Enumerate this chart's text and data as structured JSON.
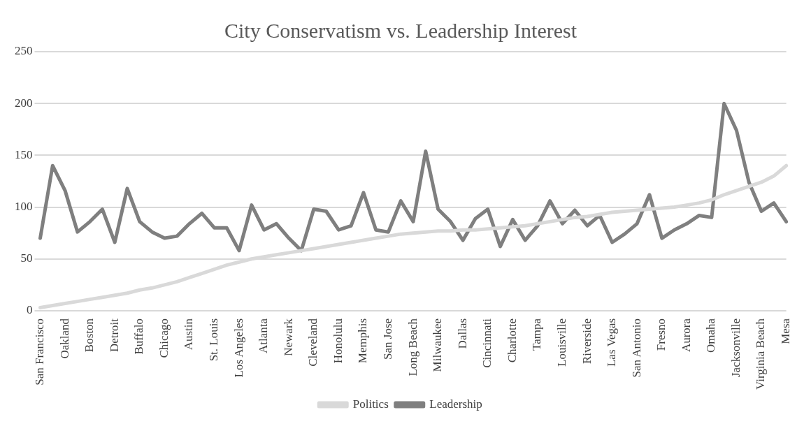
{
  "chart_data": {
    "type": "line",
    "title": "City Conservatism vs. Leadership Interest",
    "categories": [
      "San Francisco",
      null,
      "Oakland",
      null,
      "Boston",
      null,
      "Detroit",
      null,
      "Buffalo",
      null,
      "Chicago",
      null,
      "Austin",
      null,
      "St. Louis",
      null,
      "Los Angeles",
      null,
      "Atlanta",
      null,
      "Newark",
      null,
      "Cleveland",
      null,
      "Honolulu",
      null,
      "Memphis",
      null,
      "San Jose",
      null,
      "Long Beach",
      null,
      "Milwaukee",
      null,
      "Dallas",
      null,
      "Cincinnati",
      null,
      "Charlotte",
      null,
      "Tampa",
      null,
      "Louisville",
      null,
      "Riverside",
      null,
      "Las Vegas",
      null,
      "San Antonio",
      null,
      "Fresno",
      null,
      "Aurora",
      null,
      "Omaha",
      null,
      "Jacksonville",
      null,
      "Virginia Beach",
      null,
      "Mesa"
    ],
    "series": [
      {
        "name": "Politics",
        "color": "#d9d9d9",
        "values": [
          3,
          5,
          7,
          9,
          11,
          13,
          15,
          17,
          20,
          22,
          25,
          28,
          32,
          36,
          40,
          44,
          47,
          50,
          52,
          54,
          56,
          58,
          60,
          62,
          64,
          66,
          68,
          70,
          72,
          74,
          75,
          76,
          77,
          77,
          78,
          78,
          79,
          80,
          81,
          82,
          84,
          86,
          88,
          90,
          91,
          93,
          95,
          96,
          97,
          98,
          99,
          100,
          102,
          104,
          107,
          112,
          116,
          120,
          124,
          130,
          140
        ]
      },
      {
        "name": "Leadership",
        "color": "#7f7f7f",
        "values": [
          70,
          140,
          116,
          76,
          86,
          98,
          66,
          118,
          86,
          76,
          70,
          72,
          84,
          94,
          80,
          80,
          58,
          102,
          78,
          84,
          70,
          58,
          98,
          96,
          78,
          82,
          114,
          78,
          76,
          106,
          86,
          154,
          98,
          86,
          68,
          89,
          98,
          62,
          88,
          68,
          82,
          106,
          84,
          97,
          82,
          92,
          66,
          74,
          84,
          112,
          70,
          78,
          84,
          92,
          90,
          200,
          174,
          124,
          96,
          104,
          86
        ]
      }
    ],
    "ylim": [
      0,
      250
    ],
    "yticks": [
      0,
      50,
      100,
      150,
      200,
      250
    ],
    "grid": "y",
    "legend": "bottom",
    "marker": "none",
    "line_style": "solid"
  }
}
